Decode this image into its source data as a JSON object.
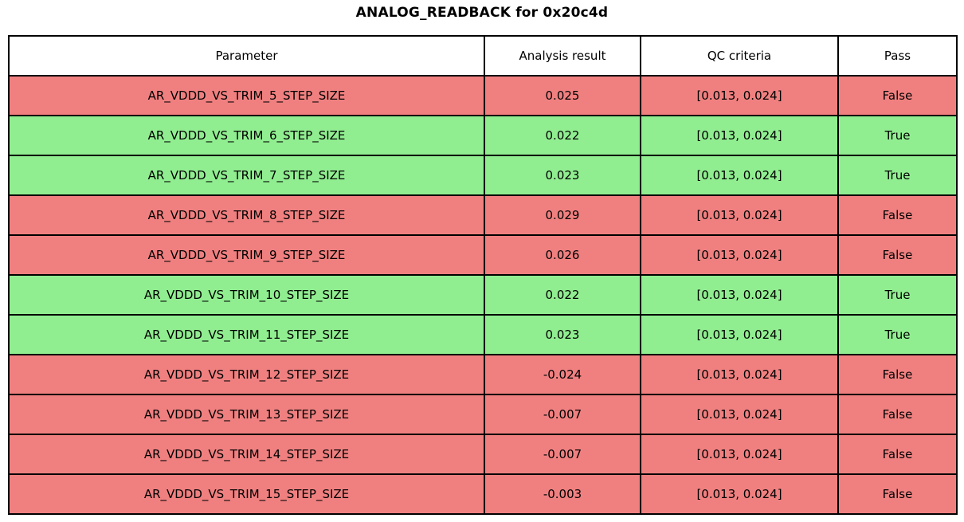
{
  "title": "ANALOG_READBACK for 0x20c4d",
  "colors": {
    "pass_row_background": "#90ee90",
    "fail_row_background": "#f08080",
    "border": "#000000",
    "header_background": "#ffffff",
    "text": "#000000"
  },
  "chart_data": {
    "type": "table",
    "title": "ANALOG_READBACK for 0x20c4d",
    "headers": [
      "Parameter",
      "Analysis result",
      "QC criteria",
      "Pass"
    ],
    "rows": [
      {
        "parameter": "AR_VDDD_VS_TRIM_5_STEP_SIZE",
        "analysis_result": "0.025",
        "qc_criteria": "[0.013, 0.024]",
        "pass": "False"
      },
      {
        "parameter": "AR_VDDD_VS_TRIM_6_STEP_SIZE",
        "analysis_result": "0.022",
        "qc_criteria": "[0.013, 0.024]",
        "pass": "True"
      },
      {
        "parameter": "AR_VDDD_VS_TRIM_7_STEP_SIZE",
        "analysis_result": "0.023",
        "qc_criteria": "[0.013, 0.024]",
        "pass": "True"
      },
      {
        "parameter": "AR_VDDD_VS_TRIM_8_STEP_SIZE",
        "analysis_result": "0.029",
        "qc_criteria": "[0.013, 0.024]",
        "pass": "False"
      },
      {
        "parameter": "AR_VDDD_VS_TRIM_9_STEP_SIZE",
        "analysis_result": "0.026",
        "qc_criteria": "[0.013, 0.024]",
        "pass": "False"
      },
      {
        "parameter": "AR_VDDD_VS_TRIM_10_STEP_SIZE",
        "analysis_result": "0.022",
        "qc_criteria": "[0.013, 0.024]",
        "pass": "True"
      },
      {
        "parameter": "AR_VDDD_VS_TRIM_11_STEP_SIZE",
        "analysis_result": "0.023",
        "qc_criteria": "[0.013, 0.024]",
        "pass": "True"
      },
      {
        "parameter": "AR_VDDD_VS_TRIM_12_STEP_SIZE",
        "analysis_result": "-0.024",
        "qc_criteria": "[0.013, 0.024]",
        "pass": "False"
      },
      {
        "parameter": "AR_VDDD_VS_TRIM_13_STEP_SIZE",
        "analysis_result": "-0.007",
        "qc_criteria": "[0.013, 0.024]",
        "pass": "False"
      },
      {
        "parameter": "AR_VDDD_VS_TRIM_14_STEP_SIZE",
        "analysis_result": "-0.007",
        "qc_criteria": "[0.013, 0.024]",
        "pass": "False"
      },
      {
        "parameter": "AR_VDDD_VS_TRIM_15_STEP_SIZE",
        "analysis_result": "-0.003",
        "qc_criteria": "[0.013, 0.024]",
        "pass": "False"
      }
    ]
  }
}
